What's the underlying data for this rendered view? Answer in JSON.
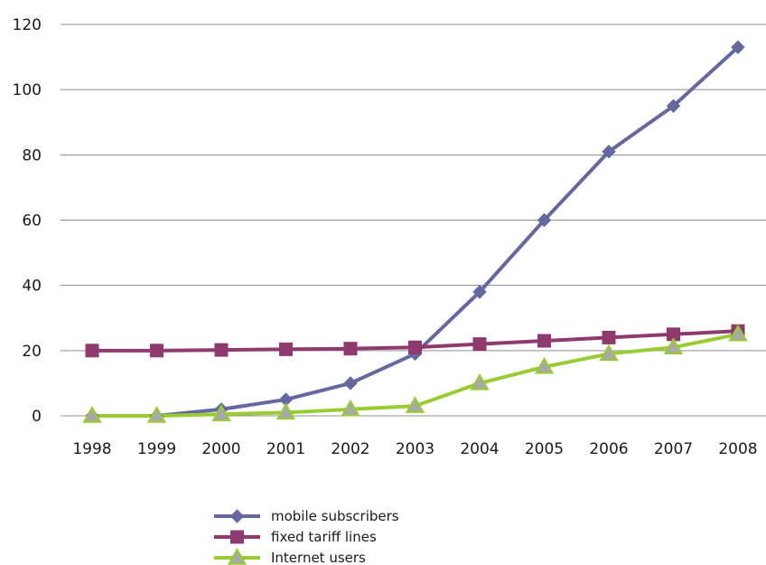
{
  "chart_data": {
    "type": "line",
    "categories": [
      "1998",
      "1999",
      "2000",
      "2001",
      "2002",
      "2003",
      "2004",
      "2005",
      "2006",
      "2007",
      "2008"
    ],
    "ylim": [
      0,
      120
    ],
    "yticks": [
      "0",
      "20",
      "40",
      "60",
      "80",
      "100",
      "120"
    ],
    "grid": "horizontal",
    "legend_position": "bottom",
    "series": [
      {
        "name": "mobile subscribers",
        "color": "#6567a1",
        "marker": "diamond",
        "values": [
          0,
          0,
          2,
          5,
          10,
          19,
          38,
          60,
          81,
          95,
          113
        ]
      },
      {
        "name": "fixed tariff lines",
        "color": "#8e3a6e",
        "marker": "square",
        "values": [
          20,
          20,
          20.2,
          20.4,
          20.6,
          21,
          22,
          23,
          24,
          25,
          26
        ]
      },
      {
        "name": "Internet users",
        "color": "#99cc33",
        "marker": "triangle",
        "values": [
          0,
          0,
          0.5,
          1,
          2,
          3,
          10,
          15,
          19,
          21,
          25
        ]
      }
    ]
  }
}
